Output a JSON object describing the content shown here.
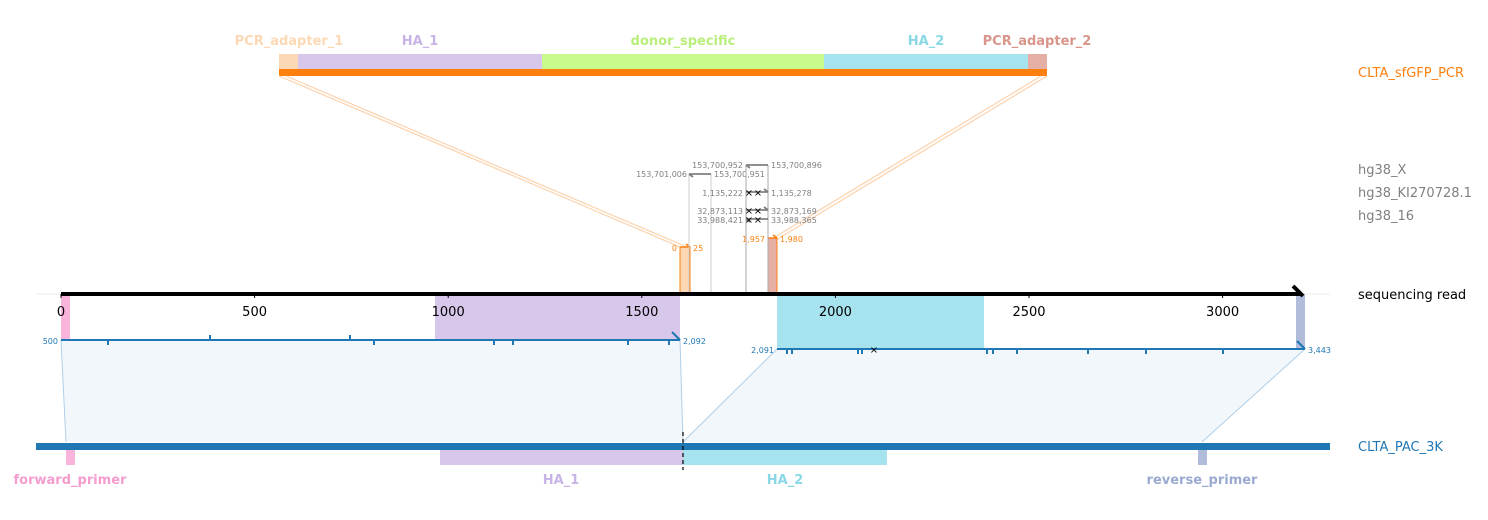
{
  "colors": {
    "pcr_adapter_1": "#fcd9b4",
    "ha_1": "#d6c7eb",
    "donor_specific": "#c8fb8c",
    "ha_2": "#a6e3ee",
    "pcr_adapter_2": "#e6afa6",
    "forward_primer": "#f9b4dc",
    "reverse_primer": "#b0bcd9",
    "pcr_track": "#fd7f0e",
    "pac_track": "#1f77b4",
    "read_axis": "#000000",
    "ref_gray": "#808080"
  },
  "track_labels": {
    "pcr": "CLTA_sfGFP_PCR",
    "chr_x": "hg38_X",
    "chr_ki": "hg38_KI270728.1",
    "chr_16": "hg38_16",
    "read": "sequencing read",
    "pac": "CLTA_PAC_3K"
  },
  "pcr_segments": {
    "pcr_adapter_1": "PCR_adapter_1",
    "ha_1": "HA_1",
    "donor_specific": "donor_specific",
    "ha_2": "HA_2",
    "pcr_adapter_2": "PCR_adapter_2"
  },
  "pac_segments": {
    "forward_primer": "forward_primer",
    "ha_1": "HA_1",
    "ha_2": "HA_2",
    "reverse_primer": "reverse_primer"
  },
  "read_axis": {
    "ticks": [
      "0",
      "500",
      "1000",
      "1500",
      "2000",
      "2500",
      "3000"
    ]
  },
  "pcr_alignment": {
    "start_label": "0",
    "end_label": "25",
    "start2_label": "1,957",
    "end2_label": "1,980"
  },
  "ref_alignments": {
    "x_a_start": "153,701,006",
    "x_a_end": "153,700,951",
    "x_b_start": "153,700,952",
    "x_b_end": "153,700,896",
    "ki_start": "1,135,222",
    "ki_end": "1,135,278",
    "c16_a_start": "32,873,113",
    "c16_a_end": "32,873,169",
    "c16_b_start": "33,988,421",
    "c16_b_end": "33,988,365"
  },
  "pac_alignments": {
    "a_start": "500",
    "a_end": "2,092",
    "b_start": "2,091",
    "b_end": "3,443"
  }
}
